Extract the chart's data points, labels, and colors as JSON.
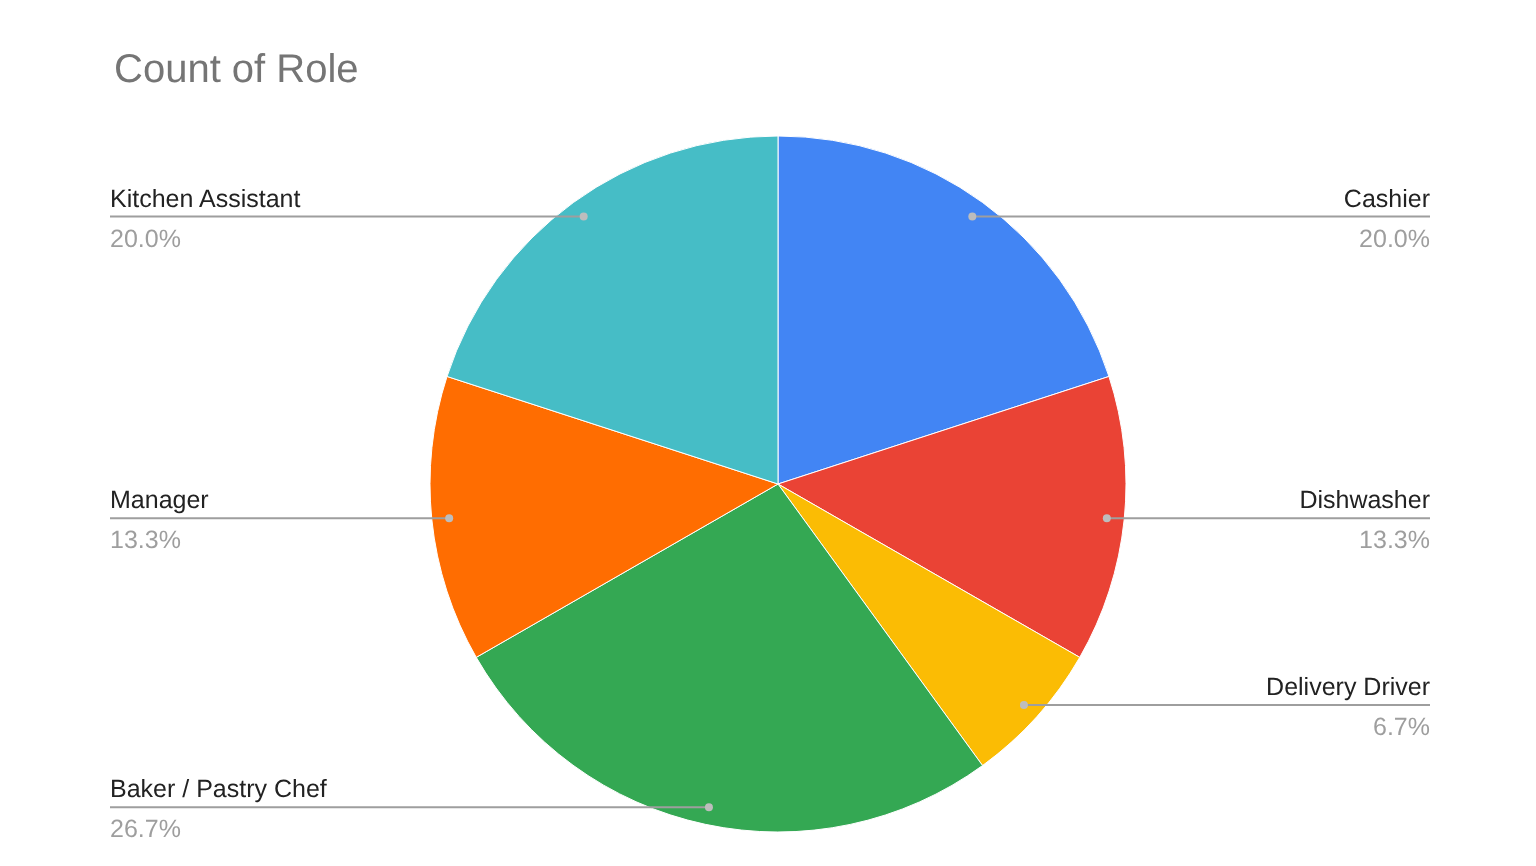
{
  "chart_data": {
    "type": "pie",
    "title": "Count of Role",
    "categories": [
      "Cashier",
      "Dishwasher",
      "Delivery Driver",
      "Baker / Pastry Chef",
      "Manager",
      "Kitchen Assistant"
    ],
    "values": [
      20,
      13.3,
      6.7,
      26.7,
      13.3,
      20
    ],
    "value_labels": [
      "20.0%",
      "13.3%",
      "6.7%",
      "26.7%",
      "13.3%",
      "20.0%"
    ],
    "colors": [
      "#4285f4",
      "#ea4335",
      "#fbbc04",
      "#34a853",
      "#ff6d01",
      "#46bdc6"
    ]
  }
}
